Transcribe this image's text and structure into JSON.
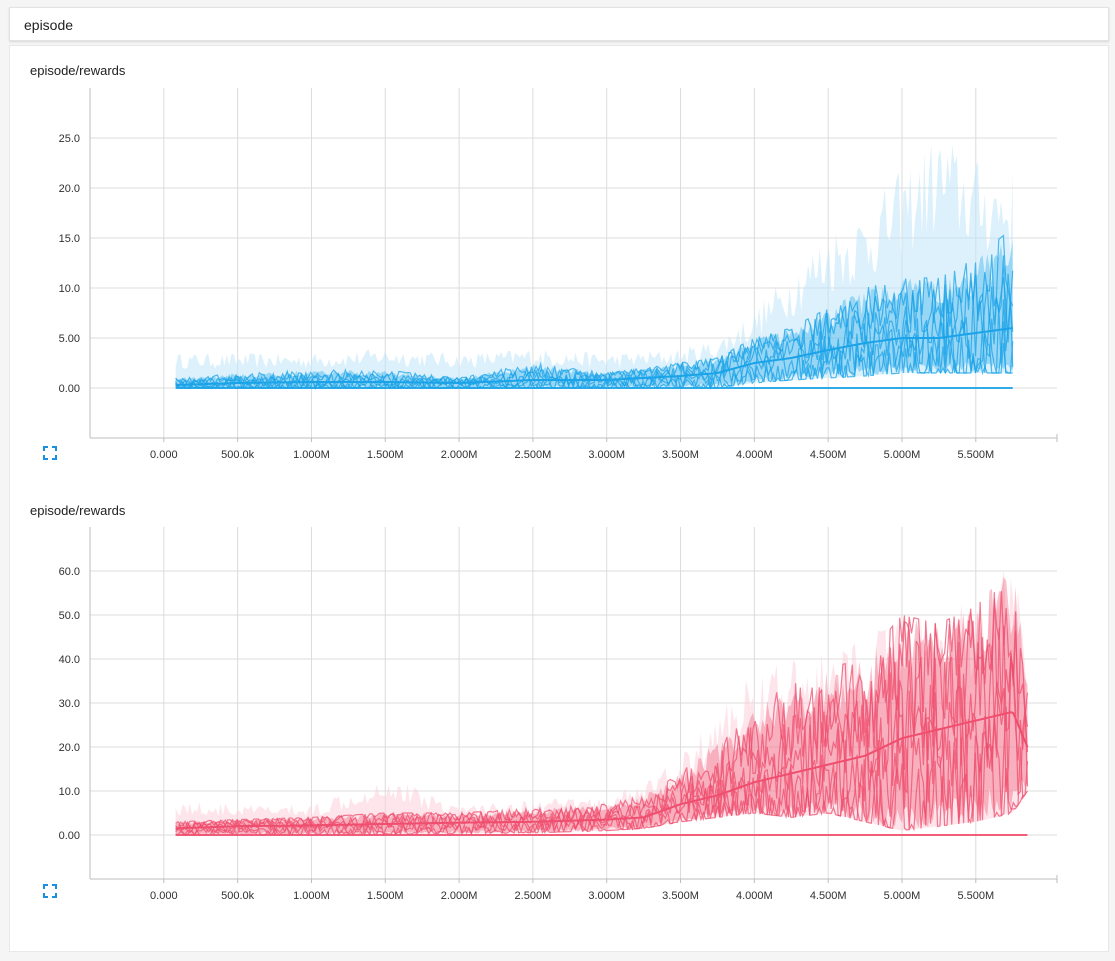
{
  "card": {
    "title": "episode"
  },
  "colors": {
    "blue_dark": "#1aa3e8",
    "blue_light": "#bfe6f9",
    "red_dark": "#ef4e6e",
    "red_light": "#fbd0da",
    "grid": "#dcdcdc",
    "axis": "#bdbdbd"
  },
  "charts": [
    {
      "title": "episode/rewards",
      "expand_icon": "fullscreen-icon",
      "x_tick_labels": [
        "0.000",
        "500.0k",
        "1.000M",
        "1.500M",
        "2.000M",
        "2.500M",
        "3.000M",
        "3.500M",
        "4.000M",
        "4.500M",
        "5.000M",
        "5.500M"
      ],
      "y_tick_labels": [
        "0.00",
        "5.00",
        "10.0",
        "15.0",
        "20.0",
        "25.0"
      ]
    },
    {
      "title": "episode/rewards",
      "expand_icon": "fullscreen-icon",
      "x_tick_labels": [
        "0.000",
        "500.0k",
        "1.000M",
        "1.500M",
        "2.000M",
        "2.500M",
        "3.000M",
        "3.500M",
        "4.000M",
        "4.500M",
        "5.000M",
        "5.500M"
      ],
      "y_tick_labels": [
        "0.00",
        "10.0",
        "20.0",
        "30.0",
        "40.0",
        "50.0",
        "60.0"
      ]
    }
  ],
  "chart_data": [
    {
      "type": "line",
      "title": "episode/rewards",
      "xlim": [
        -500000,
        6050000
      ],
      "ylim": [
        -5,
        30
      ],
      "x_ticks": [
        0,
        500000,
        1000000,
        1500000,
        2000000,
        2500000,
        3000000,
        3500000,
        4000000,
        4500000,
        5000000,
        5500000
      ],
      "y_ticks": [
        0,
        5,
        10,
        15,
        20,
        25
      ],
      "grid": true,
      "color": "#1aa3e8",
      "x": [
        80000,
        500000,
        1000000,
        1500000,
        2000000,
        2500000,
        3000000,
        3500000,
        3750000,
        4000000,
        4250000,
        4500000,
        4750000,
        5000000,
        5250000,
        5500000,
        5750000
      ],
      "series_upper": [
        1.0,
        1.5,
        1.8,
        1.8,
        1.0,
        2.5,
        1.5,
        2.5,
        3.0,
        5.0,
        6.0,
        8.0,
        10.0,
        11.0,
        11.0,
        13.0,
        16.0
      ],
      "series_mean": [
        0.3,
        0.5,
        0.6,
        0.6,
        0.5,
        0.8,
        0.8,
        1.2,
        1.5,
        2.5,
        3.0,
        3.8,
        4.5,
        5.0,
        5.0,
        5.5,
        6.0
      ],
      "series_lower": [
        0,
        0,
        0,
        0,
        0,
        0,
        0,
        0,
        0,
        0.5,
        0.8,
        1.0,
        1.2,
        1.5,
        1.5,
        1.5,
        1.5
      ],
      "raw_peak": [
        3.5,
        3.5,
        3.5,
        4.0,
        3.5,
        4.0,
        3.5,
        4.0,
        5.0,
        8.0,
        12.0,
        16.0,
        18.0,
        22.0,
        26.0,
        23.0,
        22.0
      ]
    },
    {
      "type": "line",
      "title": "episode/rewards",
      "xlim": [
        -500000,
        6050000
      ],
      "ylim": [
        -10,
        70
      ],
      "x_ticks": [
        0,
        500000,
        1000000,
        1500000,
        2000000,
        2500000,
        3000000,
        3500000,
        4000000,
        4500000,
        5000000,
        5500000
      ],
      "y_ticks": [
        0,
        10,
        20,
        30,
        40,
        50,
        60
      ],
      "grid": true,
      "color": "#ef4e6e",
      "x": [
        80000,
        500000,
        1000000,
        1500000,
        2000000,
        2500000,
        3000000,
        3250000,
        3500000,
        3750000,
        4000000,
        4250000,
        4500000,
        4750000,
        5000000,
        5250000,
        5500000,
        5750000,
        5850000
      ],
      "series_upper": [
        3,
        3.5,
        4,
        5,
        5,
        6,
        7,
        9,
        14,
        22,
        30,
        34,
        38,
        40,
        50,
        48,
        52,
        62,
        42
      ],
      "series_mean": [
        1.5,
        2,
        2.2,
        2.5,
        2.8,
        3,
        3.5,
        4,
        7,
        9,
        12,
        14,
        16,
        18,
        22,
        24,
        26,
        28,
        20
      ],
      "series_lower": [
        0,
        0,
        0,
        0.2,
        0.3,
        0.5,
        1,
        1.5,
        3,
        4,
        5,
        4,
        5,
        3,
        1,
        2,
        3,
        5,
        10
      ],
      "raw_peak": [
        8,
        7,
        7,
        14,
        7,
        8,
        9,
        12,
        18,
        28,
        38,
        40,
        42,
        45,
        51,
        50,
        55,
        62,
        45
      ]
    }
  ]
}
